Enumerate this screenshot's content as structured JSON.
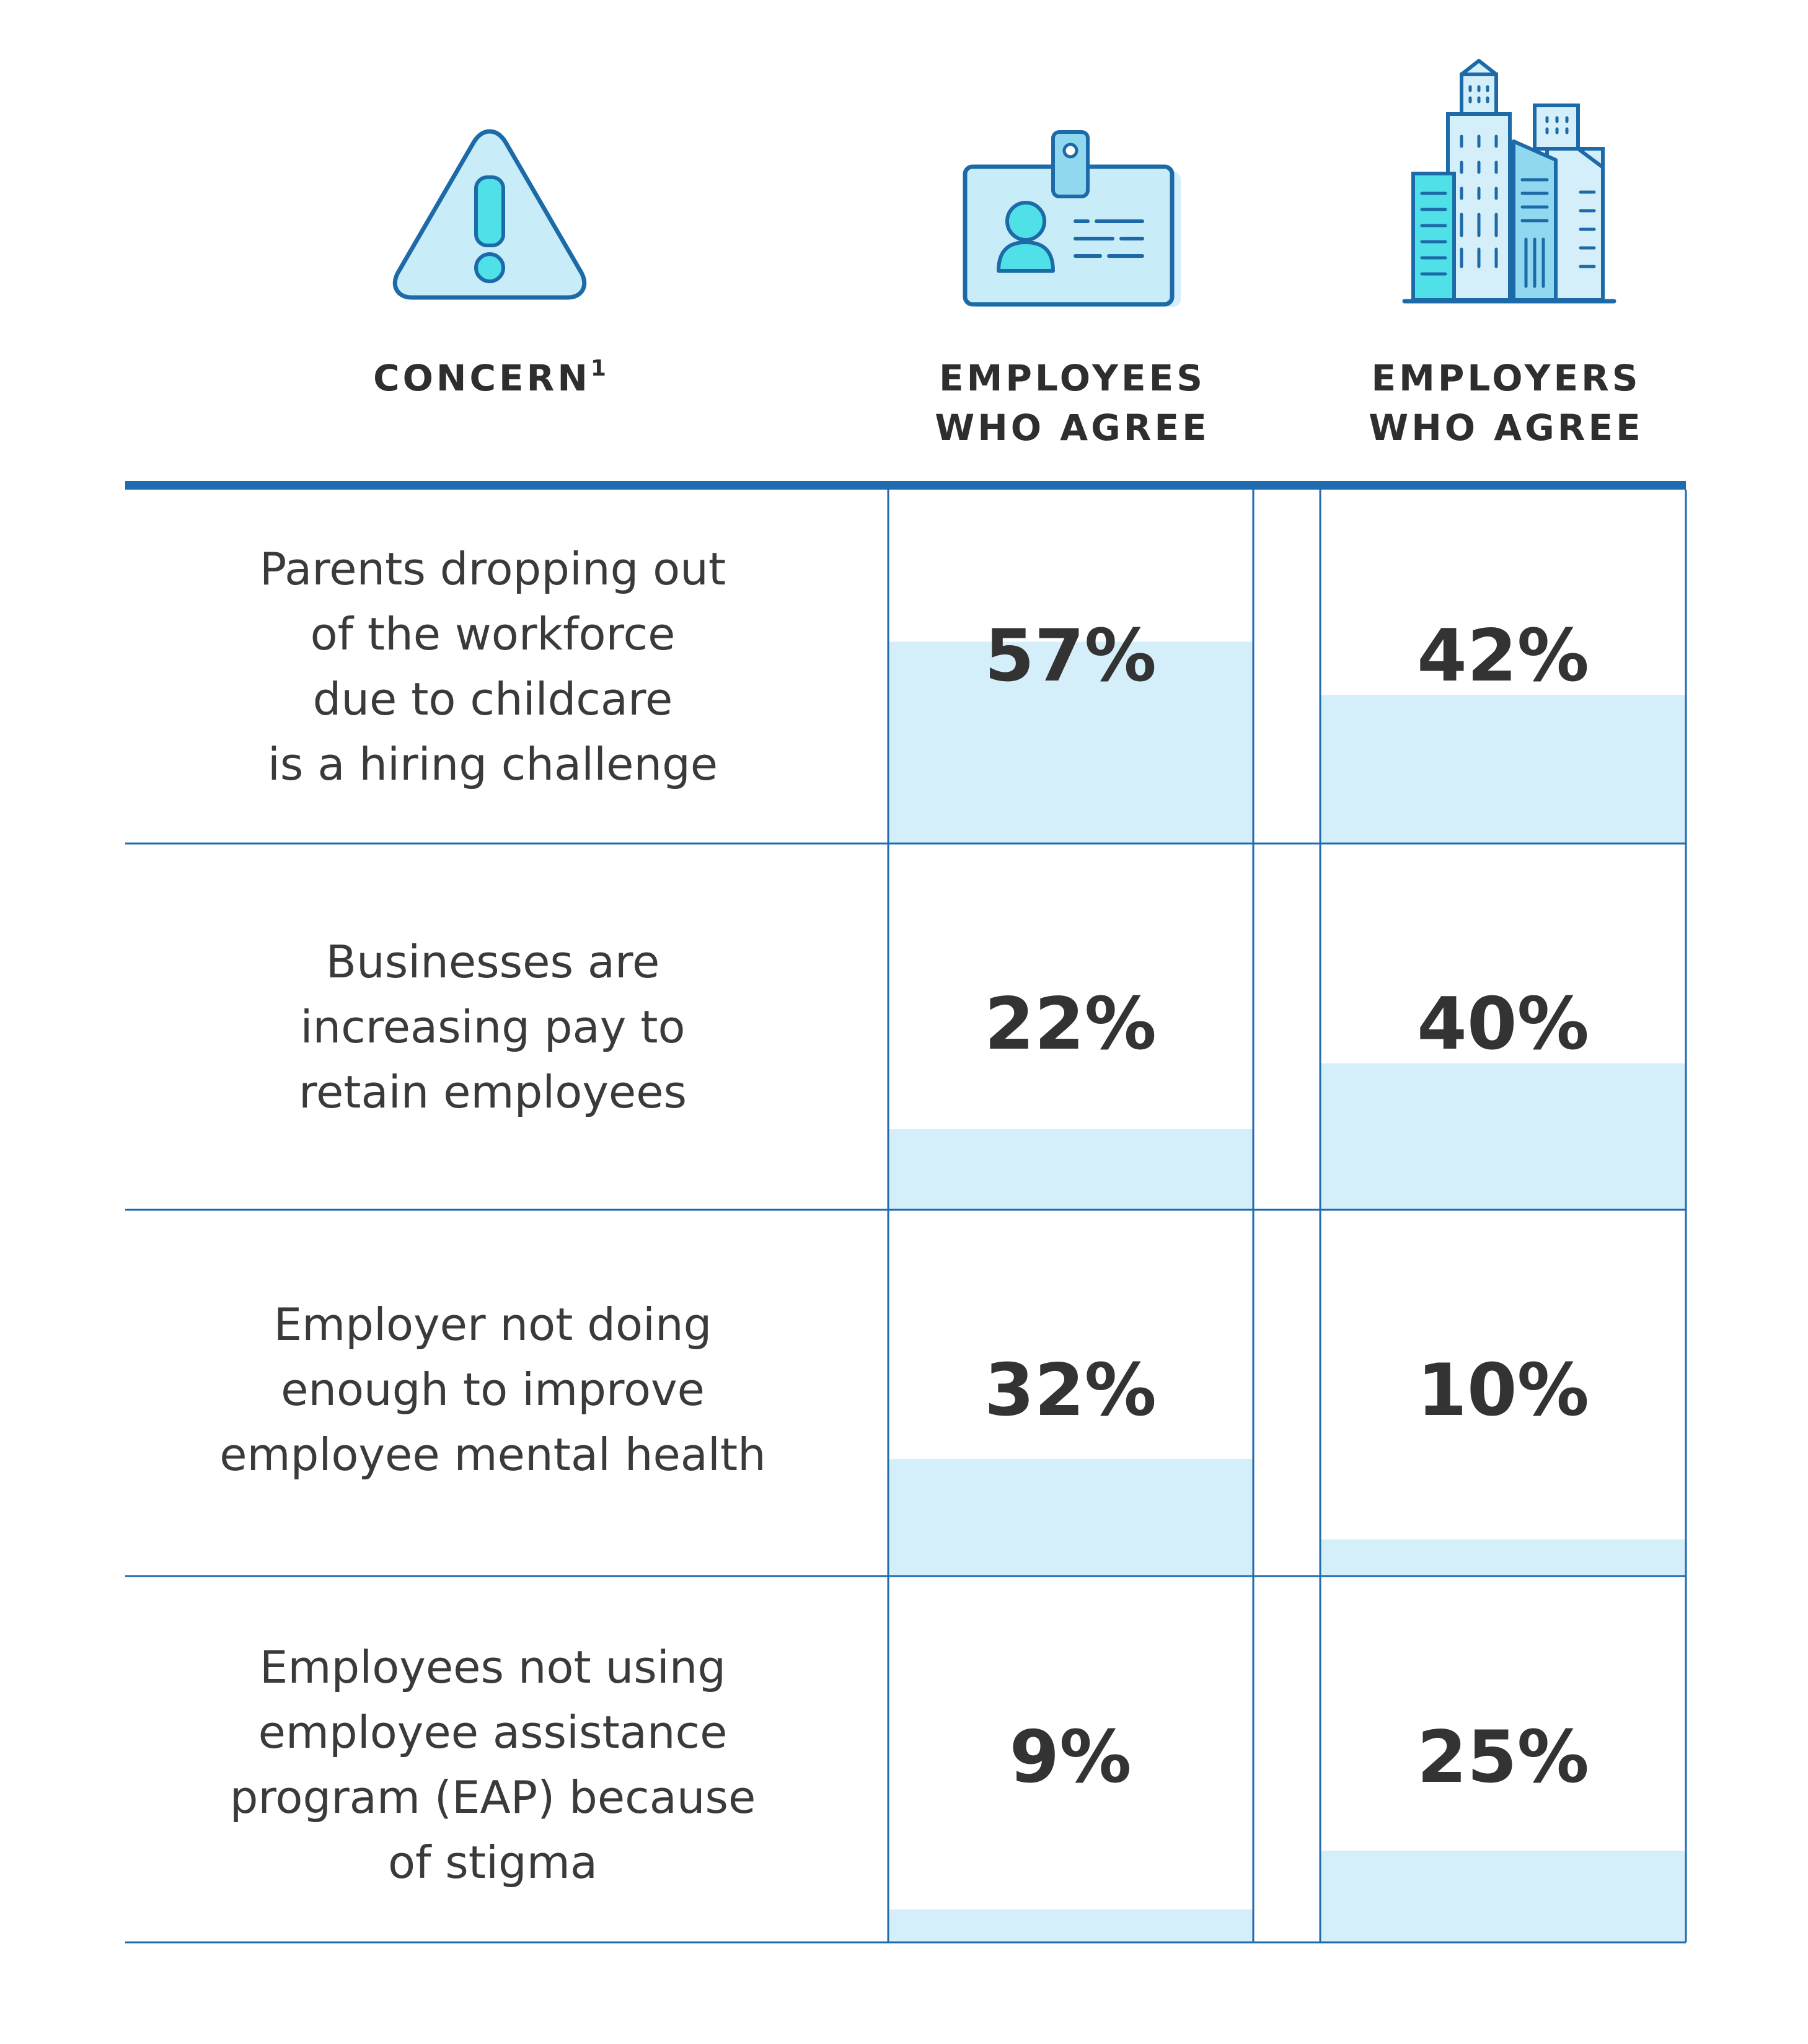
{
  "chart_data": {
    "type": "table",
    "title": "",
    "columns": [
      {
        "header": "CONCERN",
        "footnote": "1",
        "icon": "warning-triangle-icon"
      },
      {
        "header_lines": [
          "EMPLOYEES",
          "WHO AGREE"
        ],
        "icon": "id-badge-icon"
      },
      {
        "header_lines": [
          "EMPLOYERS",
          "WHO AGREE"
        ],
        "icon": "city-buildings-icon"
      }
    ],
    "unit": "%",
    "ylim": [
      0,
      100
    ],
    "series": [
      {
        "name": "Employees who agree",
        "values": [
          57,
          22,
          32,
          9
        ]
      },
      {
        "name": "Employers who agree",
        "values": [
          42,
          40,
          10,
          25
        ]
      }
    ],
    "rows": [
      {
        "concern_lines": [
          "Parents dropping out",
          "of the workforce",
          "due to childcare",
          "is a hiring challenge"
        ],
        "labels": [
          "57%",
          "42%"
        ]
      },
      {
        "concern_lines": [
          "Businesses are",
          "increasing pay to",
          "retain employees"
        ],
        "labels": [
          "22%",
          "40%"
        ]
      },
      {
        "concern_lines": [
          "Employer not doing",
          "enough to improve",
          "employee mental health"
        ],
        "labels": [
          "32%",
          "10%"
        ]
      },
      {
        "concern_lines": [
          "Employees not using",
          "employee assistance",
          "program (EAP) because",
          "of stigma"
        ],
        "labels": [
          "9%",
          "25%"
        ]
      }
    ]
  },
  "colors": {
    "rule": "#1e6bb0",
    "fill": "#d4eefa",
    "icon_stroke": "#1d6aa8",
    "icon_fill_light": "#c8ecf8",
    "icon_fill_accent": "#4fe0e8"
  }
}
